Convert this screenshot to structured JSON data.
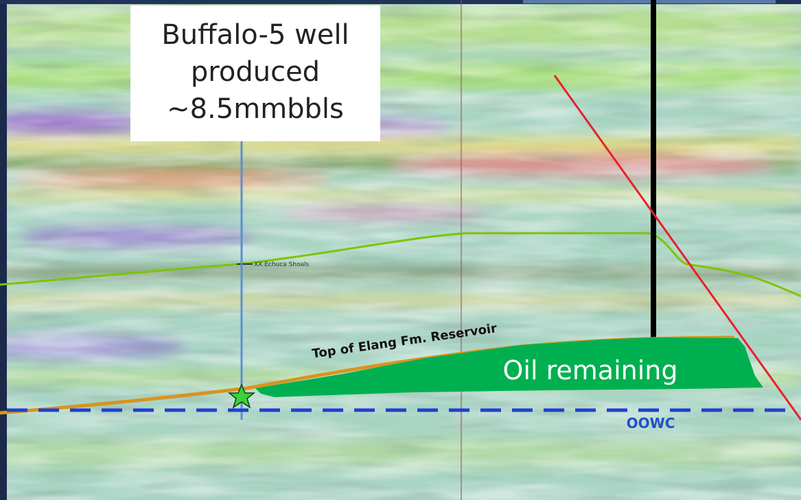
{
  "callout": {
    "lines": [
      "Buffalo-5 well",
      "produced",
      "~8.5mmbbls"
    ]
  },
  "labels": {
    "horizon": "XX Echuca Shoals",
    "reservoir": "Top of Elang Fm. Reservoir",
    "oil": "Oil remaining",
    "contact": "OOWC"
  }
}
